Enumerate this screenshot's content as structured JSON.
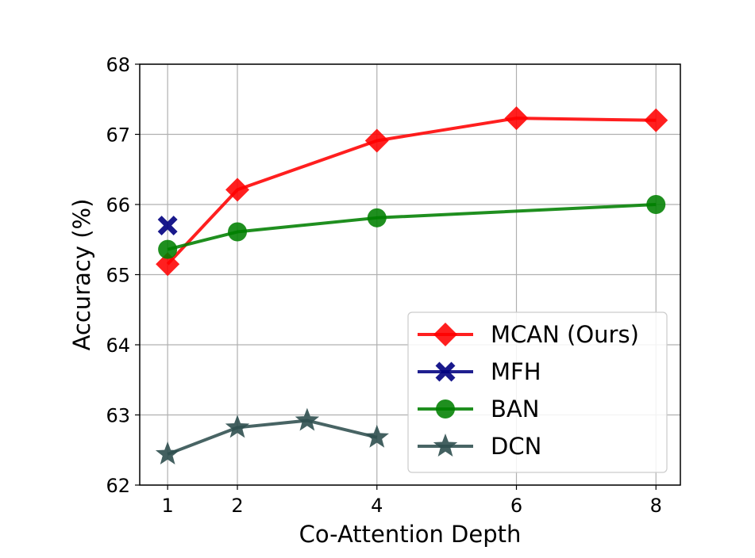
{
  "chart_data": {
    "type": "line",
    "title": "",
    "xlabel": "Co-Attention Depth",
    "ylabel": "Accuracy (%)",
    "xlim": [
      0.6,
      8.35
    ],
    "ylim": [
      62,
      68
    ],
    "xticks": [
      1,
      2,
      4,
      6,
      8
    ],
    "yticks": [
      62,
      63,
      64,
      65,
      66,
      67,
      68
    ],
    "grid": true,
    "legend_position": "lower-right",
    "series": [
      {
        "name": "MCAN (Ours)",
        "color": "#ff0000",
        "marker": "diamond",
        "x": [
          1,
          2,
          4,
          6,
          8
        ],
        "y": [
          65.15,
          66.21,
          66.91,
          67.23,
          67.2
        ]
      },
      {
        "name": "MFH",
        "color": "#000080",
        "marker": "x",
        "x": [
          1
        ],
        "y": [
          65.7
        ]
      },
      {
        "name": "BAN",
        "color": "#008000",
        "marker": "circle",
        "x": [
          1,
          2,
          4,
          8
        ],
        "y": [
          65.36,
          65.61,
          65.81,
          66.0
        ]
      },
      {
        "name": "DCN",
        "color": "#2f4f4f",
        "marker": "star",
        "x": [
          1,
          2,
          3,
          4
        ],
        "y": [
          62.44,
          62.82,
          62.92,
          62.68
        ]
      }
    ]
  }
}
